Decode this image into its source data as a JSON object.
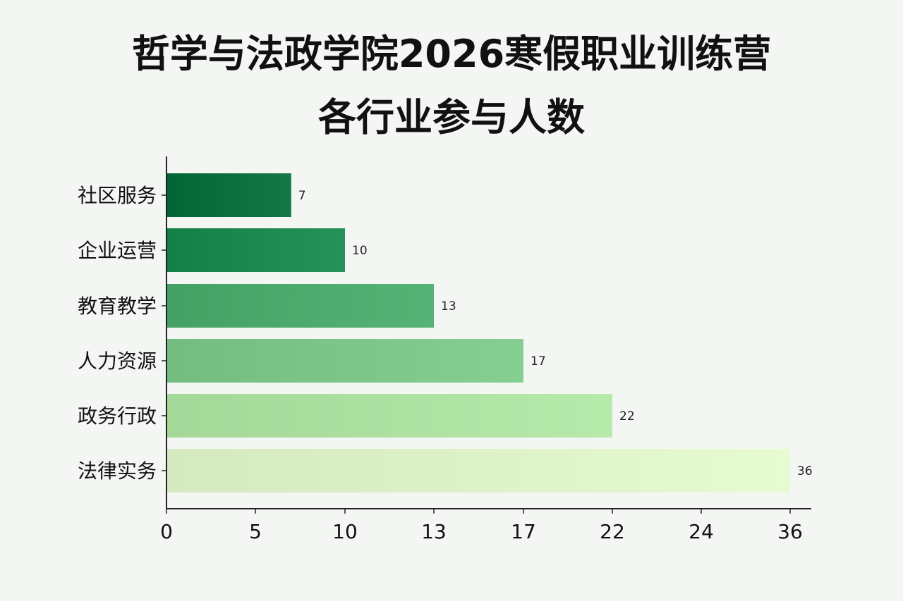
{
  "chart_data": {
    "type": "bar",
    "orientation": "horizontal",
    "title_lines": [
      "哲学与法政学院2026寒假职业训练营",
      "各行业参与人数"
    ],
    "categories": [
      "社区服务",
      "企业运营",
      "教育教学",
      "人力资源",
      "政务行政",
      "法律实务"
    ],
    "values": [
      7,
      10,
      13,
      17,
      22,
      36
    ],
    "x_tick_labels": [
      "0",
      "5",
      "10",
      "13",
      "17",
      "22",
      "24",
      "36"
    ],
    "colors": [
      "#0b7040",
      "#1d8a52",
      "#4eab6e",
      "#7cc789",
      "#aee2a3",
      "#def3c9"
    ],
    "grid": false,
    "legend": "none"
  }
}
